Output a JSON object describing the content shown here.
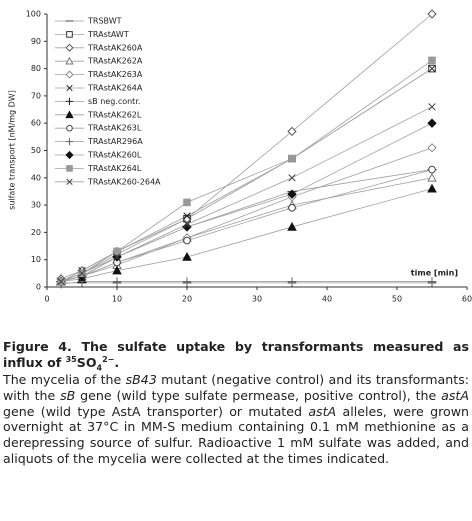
{
  "chart_data": {
    "type": "line",
    "y_label": "sulfate transport [nM/mg DW]",
    "x_label": "time [min]",
    "x": [
      2,
      5,
      10,
      20,
      35,
      55
    ],
    "xlim": [
      0,
      60
    ],
    "xticks": [
      0,
      10,
      20,
      30,
      40,
      50,
      60
    ],
    "ylim": [
      0,
      100
    ],
    "yticks": [
      0,
      10,
      20,
      30,
      40,
      50,
      60,
      70,
      80,
      90,
      100
    ],
    "line_color": "#a0a0a0",
    "series": [
      {
        "name": "TRSBWT",
        "marker": "dash",
        "color": "#444444",
        "values": [
          2,
          4,
          11,
          22,
          35,
          43
        ]
      },
      {
        "name": "TRAstAWT",
        "marker": "square-open",
        "color": "#333333",
        "values": [
          2,
          5,
          12,
          25,
          47,
          80
        ]
      },
      {
        "name": "TRAstAK260A",
        "marker": "diamond-open",
        "color": "#555555",
        "values": [
          3,
          6,
          13,
          25,
          57,
          100
        ]
      },
      {
        "name": "TRAstAK262A",
        "marker": "triangle-open",
        "color": "#777777",
        "values": [
          2,
          4,
          8,
          18,
          30,
          40
        ]
      },
      {
        "name": "TRAstAK263A",
        "marker": "diamond-open",
        "color": "#888888",
        "values": [
          2,
          4,
          9,
          18,
          33,
          51
        ]
      },
      {
        "name": "TRAstAK264A",
        "marker": "x",
        "color": "#222222",
        "values": [
          2,
          6,
          13,
          26,
          47,
          80
        ]
      },
      {
        "name": "sB neg.contr.",
        "marker": "plus",
        "color": "#222222",
        "values": [
          1.5,
          1.5,
          1.5,
          1.5,
          1.5,
          1.5
        ]
      },
      {
        "name": "TRAstAK262L",
        "marker": "triangle",
        "color": "#111111",
        "values": [
          2,
          3,
          6,
          11,
          22,
          36
        ]
      },
      {
        "name": "TRAstAK263L",
        "marker": "circle-open",
        "color": "#444444",
        "values": [
          2,
          4,
          9,
          17,
          29,
          43
        ]
      },
      {
        "name": "TRAstAR296A",
        "marker": "plus",
        "color": "#666666",
        "values": [
          1,
          2,
          2,
          2,
          2,
          2
        ]
      },
      {
        "name": "TRAstAK260L",
        "marker": "diamond",
        "color": "#111111",
        "values": [
          2,
          4,
          11,
          22,
          34,
          60
        ]
      },
      {
        "name": "TRAstAK264L",
        "marker": "square",
        "color": "#999999",
        "values": [
          2,
          5,
          13,
          31,
          47,
          83
        ]
      },
      {
        "name": "TRAstAK260-264A",
        "marker": "x",
        "color": "#444444",
        "values": [
          2,
          5,
          11,
          23,
          40,
          66
        ]
      }
    ]
  },
  "caption": {
    "title_text": "Figure 4. The sulfate uptake by transformants measured as influx of ",
    "isotope": "35",
    "formula": "SO",
    "subscript": "4",
    "charge": "2−",
    "title_end": ".",
    "body": [
      {
        "text": "The mycelia of the ",
        "italic": false
      },
      {
        "text": "sB43",
        "italic": true
      },
      {
        "text": " mutant (negative control) and its transformants: with the ",
        "italic": false
      },
      {
        "text": "sB",
        "italic": true
      },
      {
        "text": " gene (wild type sulfate permease, positive control), the ",
        "italic": false
      },
      {
        "text": "astA",
        "italic": true
      },
      {
        "text": " gene (wild type AstA transporter) or mutated ",
        "italic": false
      },
      {
        "text": "astA",
        "italic": true
      },
      {
        "text": " alleles, were grown overnight at 37°C in MM-S medium containing 0.1 mM methionine as a derepressing source of sulfur. Radioactive 1 mM sulfate was added, and aliquots of the mycelia were collected at the times indicated.",
        "italic": false
      }
    ]
  }
}
